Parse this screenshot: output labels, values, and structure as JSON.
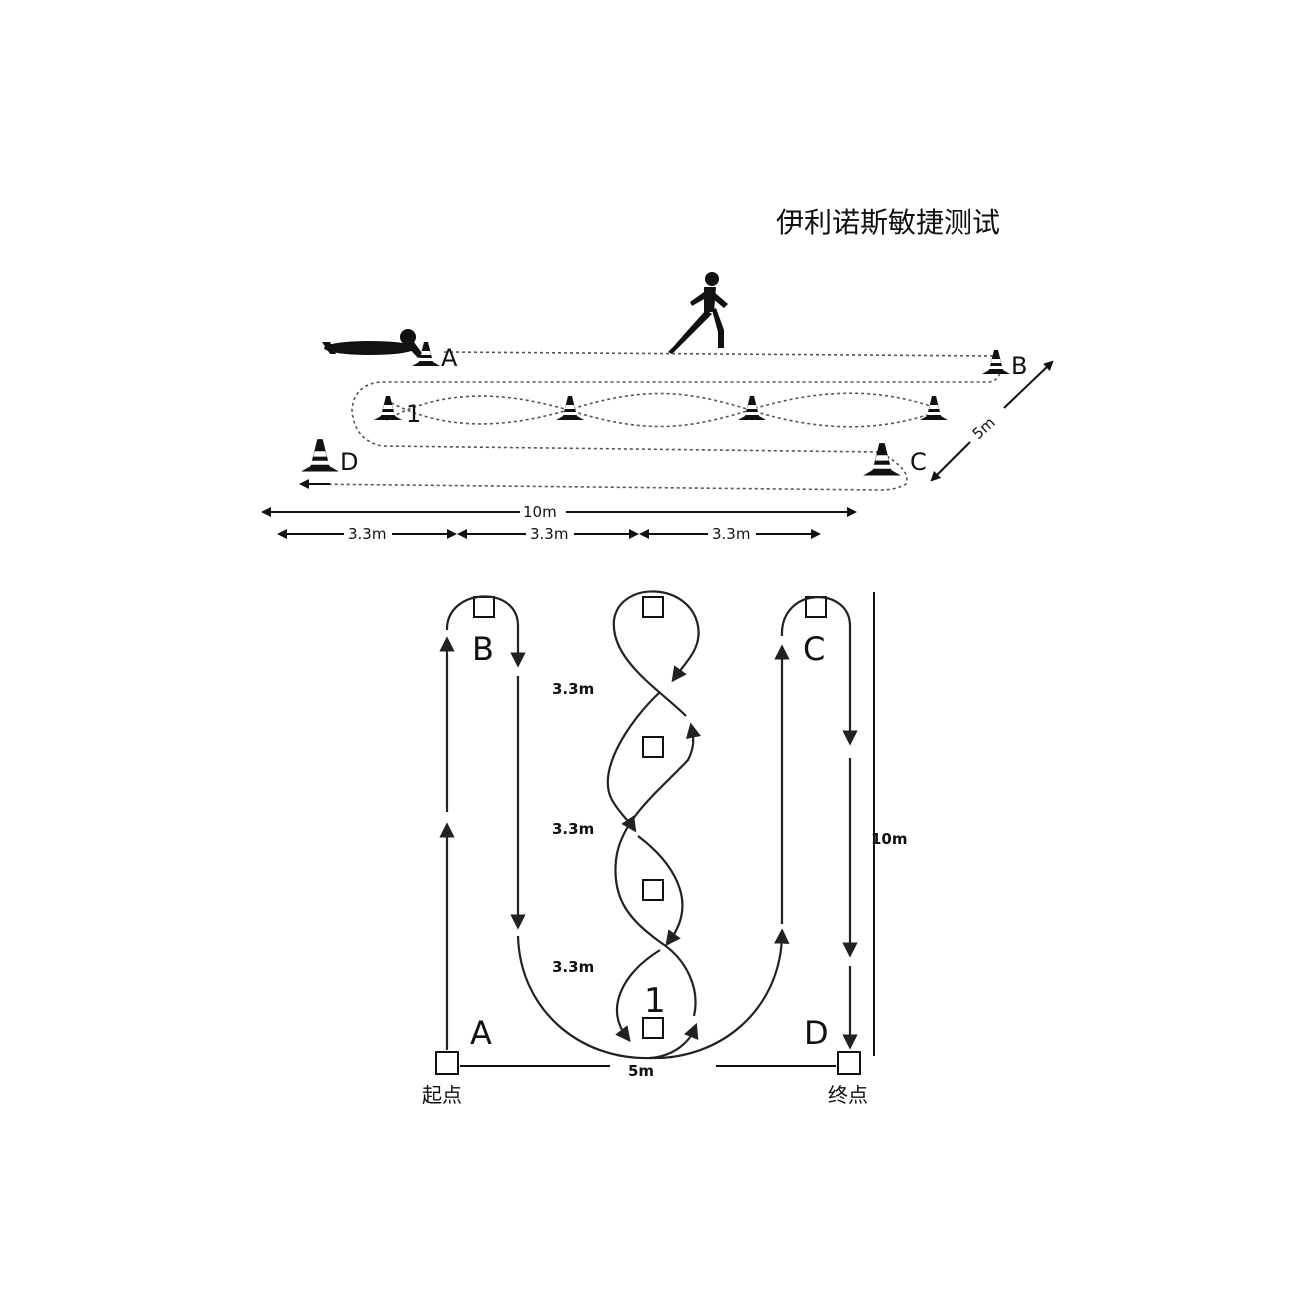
{
  "title": "伊利诺斯敏捷测试",
  "top_view": {
    "cones": {
      "a": "A",
      "b": "B",
      "c": "C",
      "d": "D",
      "one": "1"
    },
    "dims": {
      "width": "5m",
      "length": "10m",
      "seg1": "3.3m",
      "seg2": "3.3m",
      "seg3": "3.3m"
    }
  },
  "plan_view": {
    "markers": {
      "a": "A",
      "b": "B",
      "c": "C",
      "d": "D",
      "one": "1"
    },
    "dims": {
      "gap1": "3.3m",
      "gap2": "3.3m",
      "gap3": "3.3m",
      "length": "10m",
      "width": "5m"
    },
    "start": "起点",
    "finish": "终点"
  }
}
